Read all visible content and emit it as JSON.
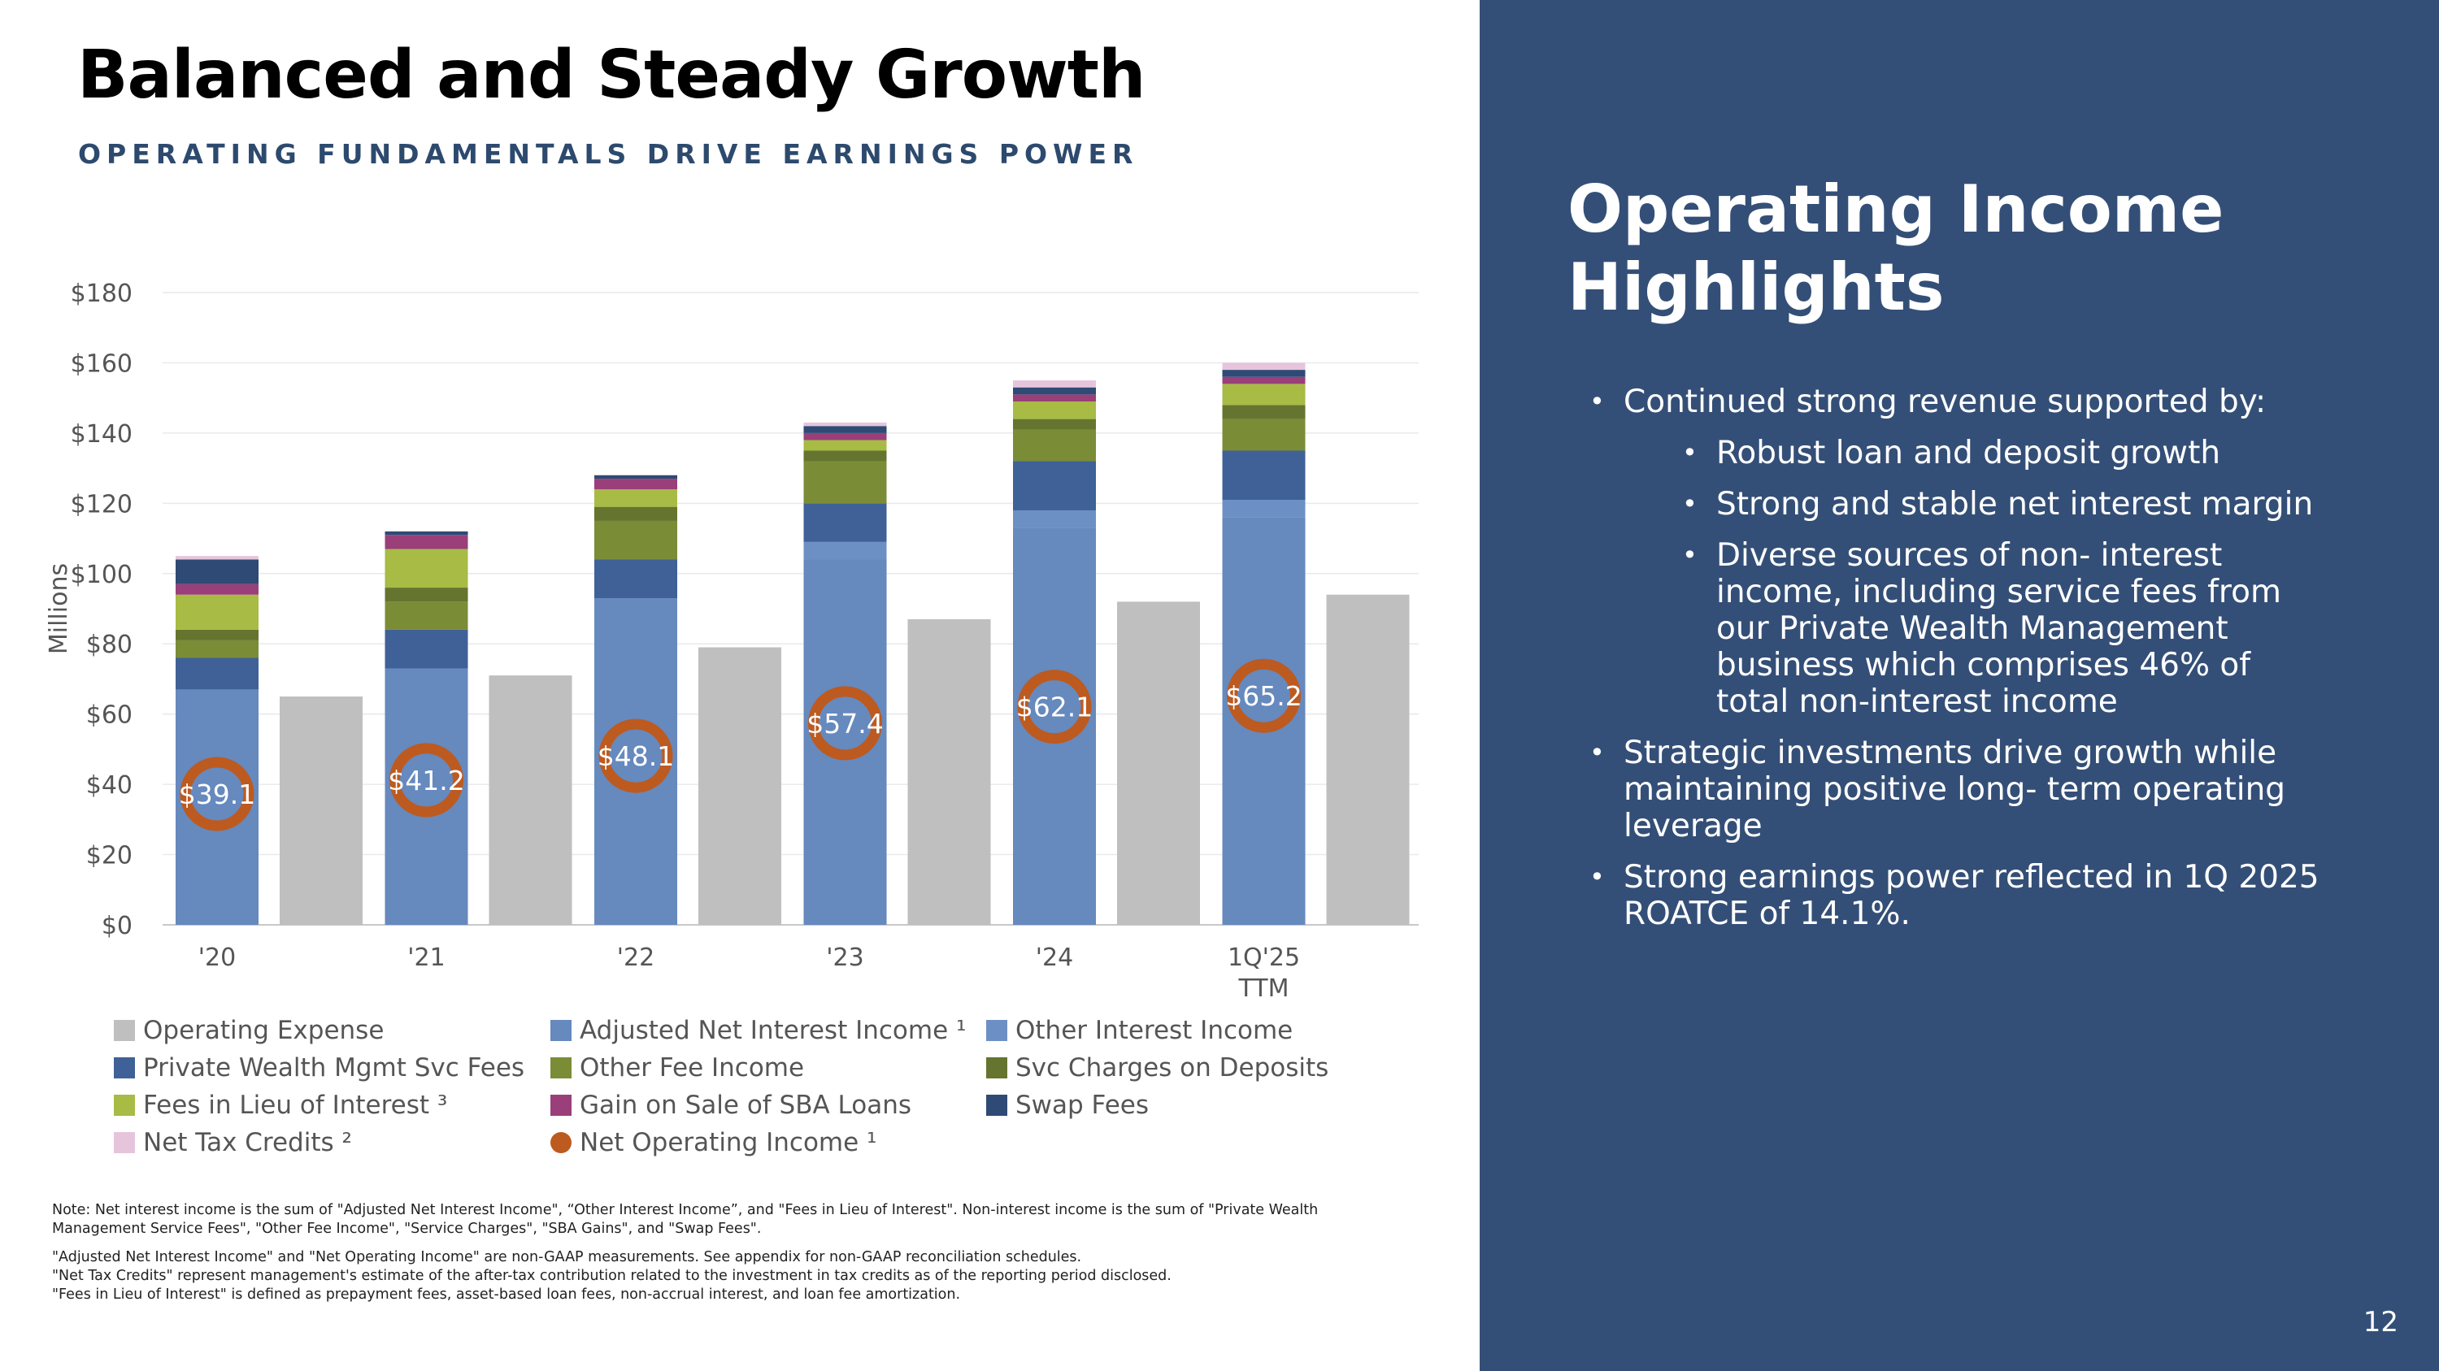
{
  "title": "Balanced and Steady Growth",
  "subtitle": "OPERATING FUNDAMENTALS DRIVE EARNINGS POWER",
  "chart_data": {
    "type": "bar",
    "stacked": true,
    "ylabel": "Millions",
    "ylim": [
      0,
      180
    ],
    "yticks": [
      "$0",
      "$20",
      "$40",
      "$60",
      "$80",
      "$100",
      "$120",
      "$140",
      "$160",
      "$180"
    ],
    "categories": [
      "'20",
      "'21",
      "'22",
      "'23",
      "'24",
      "1Q'25 TTM"
    ],
    "category_lines": [
      [
        "'20"
      ],
      [
        "'21"
      ],
      [
        "'22"
      ],
      [
        "'23"
      ],
      [
        "'24"
      ],
      [
        "1Q'25",
        "TTM"
      ]
    ],
    "revenue_series": [
      {
        "name": "Adjusted Net Interest Income ¹",
        "color": "#6689be",
        "values": [
          67,
          73,
          93,
          104,
          113,
          116
        ]
      },
      {
        "name": "Other Interest Income",
        "color": "#6d90c4",
        "values": [
          0,
          0,
          0,
          5,
          5,
          5
        ]
      },
      {
        "name": "Private Wealth Mgmt Svc Fees",
        "color": "#3f6198",
        "values": [
          9,
          11,
          11,
          11,
          14,
          14
        ]
      },
      {
        "name": "Other Fee Income",
        "color": "#7b8c37",
        "values": [
          5,
          8,
          11,
          12,
          9,
          9
        ]
      },
      {
        "name": "Svc Charges on Deposits",
        "color": "#65742f",
        "values": [
          3,
          4,
          4,
          3,
          3,
          4
        ]
      },
      {
        "name": "Fees in Lieu of Interest ³",
        "color": "#a7bb45",
        "values": [
          10,
          11,
          5,
          3,
          5,
          6
        ]
      },
      {
        "name": "Gain on Sale of SBA Loans",
        "color": "#9a3f79",
        "values": [
          3,
          4,
          3,
          2,
          2,
          2
        ]
      },
      {
        "name": "Swap Fees",
        "color": "#2e4a75",
        "values": [
          7,
          1,
          1,
          2,
          2,
          2
        ]
      },
      {
        "name": "Net Tax Credits ²",
        "color": "#e6c5dc",
        "values": [
          1,
          0,
          0,
          1,
          2,
          2
        ]
      }
    ],
    "operating_expense": {
      "name": "Operating Expense",
      "color": "#bfbfbf",
      "values": [
        65,
        71,
        79,
        87,
        92,
        94
      ]
    },
    "net_operating_income": {
      "name": "Net Operating Income ¹",
      "color": "#bd5a1f",
      "values": [
        39.1,
        41.2,
        48.1,
        57.4,
        62.1,
        65.2
      ],
      "labels": [
        "$39.1",
        "$41.2",
        "$48.1",
        "$57.4",
        "$62.1",
        "$65.2"
      ]
    }
  },
  "legend": {
    "items": [
      {
        "label": "Operating Expense",
        "color": "#bfbfbf",
        "shape": "square"
      },
      {
        "label": "Adjusted Net Interest Income ¹",
        "color": "#6689be",
        "shape": "square"
      },
      {
        "label": "Other Interest Income",
        "color": "#6d90c4",
        "shape": "square"
      },
      {
        "label": "Private Wealth Mgmt Svc Fees",
        "color": "#3f6198",
        "shape": "square"
      },
      {
        "label": "Other Fee Income",
        "color": "#7b8c37",
        "shape": "square"
      },
      {
        "label": "Svc Charges on Deposits",
        "color": "#65742f",
        "shape": "square"
      },
      {
        "label": "Fees in Lieu of Interest ³",
        "color": "#a7bb45",
        "shape": "square"
      },
      {
        "label": "Gain on Sale of SBA Loans",
        "color": "#9a3f79",
        "shape": "square"
      },
      {
        "label": "Swap Fees",
        "color": "#2e4a75",
        "shape": "square"
      },
      {
        "label": "Net Tax Credits ²",
        "color": "#e6c5dc",
        "shape": "square"
      },
      {
        "label": "Net Operating Income ¹",
        "color": "#bd5a1f",
        "shape": "circle"
      }
    ]
  },
  "notes": {
    "note1": "Note: Net interest income is the sum of \"Adjusted Net Interest Income\", “Other Interest Income”, and \"Fees in Lieu of Interest\". Non-interest income is the sum of \"Private Wealth Management Service Fees\", \"Other Fee Income\", \"Service Charges\", \"SBA Gains\", and \"Swap Fees\".",
    "note2": "\"Adjusted Net Interest Income\" and \"Net Operating Income\" are non-GAAP measurements. See appendix for non-GAAP reconciliation schedules.",
    "note3": "\"Net Tax Credits\" represent management's estimate of the after-tax contribution related to the investment in tax credits as of the reporting period disclosed.",
    "note4": "\"Fees in Lieu of Interest\" is defined as prepayment fees, asset-based loan fees, non-accrual interest, and loan fee amortization."
  },
  "panel": {
    "title": "Operating Income Highlights",
    "bullet1": "Continued strong revenue supported by:",
    "sub1": "Robust loan and deposit growth",
    "sub2": "Strong and stable net interest margin",
    "sub3": "Diverse sources of non- interest income, including  service fees from our Private Wealth Management business which comprises 46% of total non-interest income",
    "bullet2": "Strategic investments drive growth while maintaining positive long- term operating leverage",
    "bullet3": "Strong earnings power reflected in 1Q 2025 ROATCE of 14.1%."
  },
  "page_number": "12"
}
